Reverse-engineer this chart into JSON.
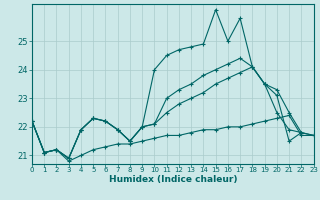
{
  "xlabel": "Humidex (Indice chaleur)",
  "background_color": "#cce8e8",
  "grid_color": "#aacccc",
  "line_color": "#006666",
  "xlim": [
    0,
    23
  ],
  "ylim": [
    20.7,
    26.3
  ],
  "yticks": [
    21,
    22,
    23,
    24,
    25
  ],
  "xticks": [
    0,
    1,
    2,
    3,
    4,
    5,
    6,
    7,
    8,
    9,
    10,
    11,
    12,
    13,
    14,
    15,
    16,
    17,
    18,
    19,
    20,
    21,
    22,
    23
  ],
  "lines": [
    {
      "x": [
        0,
        1,
        2,
        3,
        4,
        5,
        6,
        7,
        8,
        9,
        10,
        11,
        12,
        13,
        14,
        15,
        16,
        17,
        18,
        19,
        20,
        21,
        22
      ],
      "y": [
        22.2,
        21.1,
        21.2,
        20.9,
        21.9,
        22.3,
        22.2,
        21.9,
        21.5,
        22.0,
        24.0,
        24.5,
        24.7,
        24.8,
        24.9,
        26.1,
        25.0,
        25.8,
        24.1,
        23.5,
        23.1,
        21.5,
        21.8
      ]
    },
    {
      "x": [
        0,
        1,
        2,
        3,
        4,
        5,
        6,
        7,
        8,
        9,
        10,
        11,
        12,
        13,
        14,
        15,
        16,
        17,
        18,
        19,
        20,
        21,
        22,
        23
      ],
      "y": [
        22.2,
        21.1,
        21.2,
        20.9,
        21.9,
        22.3,
        22.2,
        21.9,
        21.5,
        22.0,
        22.1,
        23.0,
        23.3,
        23.5,
        23.8,
        24.0,
        24.2,
        24.4,
        24.1,
        23.5,
        22.5,
        21.9,
        21.8,
        21.7
      ]
    },
    {
      "x": [
        0,
        1,
        2,
        3,
        4,
        5,
        6,
        7,
        8,
        9,
        10,
        11,
        12,
        13,
        14,
        15,
        16,
        17,
        18,
        19,
        20,
        21,
        22,
        23
      ],
      "y": [
        22.2,
        21.1,
        21.2,
        20.9,
        21.9,
        22.3,
        22.2,
        21.9,
        21.5,
        22.0,
        22.1,
        22.5,
        22.8,
        23.0,
        23.2,
        23.5,
        23.7,
        23.9,
        24.1,
        23.5,
        23.3,
        22.5,
        21.8,
        21.7
      ]
    },
    {
      "x": [
        0,
        1,
        2,
        3,
        4,
        5,
        6,
        7,
        8,
        9,
        10,
        11,
        12,
        13,
        14,
        15,
        16,
        17,
        18,
        19,
        20,
        21,
        22,
        23
      ],
      "y": [
        22.2,
        21.1,
        21.2,
        20.8,
        21.0,
        21.2,
        21.3,
        21.4,
        21.4,
        21.5,
        21.6,
        21.7,
        21.7,
        21.8,
        21.9,
        21.9,
        22.0,
        22.0,
        22.1,
        22.2,
        22.3,
        22.4,
        21.7,
        21.7
      ]
    }
  ]
}
